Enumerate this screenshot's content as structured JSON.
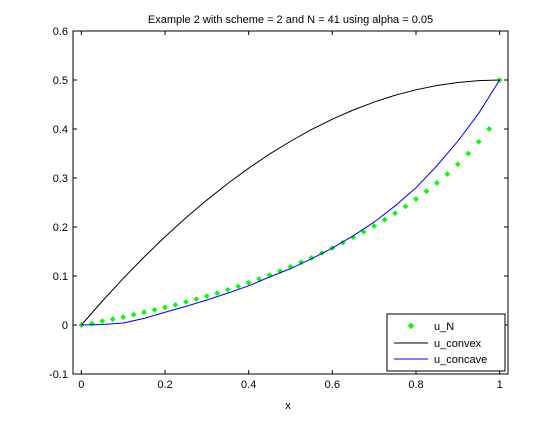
{
  "chart_data": {
    "type": "line",
    "title": "Example 2 with scheme = 2 and N = 41 using alpha = 0.05",
    "xlabel": "x",
    "ylabel": "",
    "xlim": [
      -0.02,
      1.02
    ],
    "ylim": [
      -0.1,
      0.6
    ],
    "xticks": [
      0,
      0.2,
      0.4,
      0.6,
      0.8,
      1
    ],
    "xtick_labels": [
      "0",
      "0.2",
      "0.4",
      "0.6",
      "0.8",
      "1"
    ],
    "yticks": [
      -0.1,
      0,
      0.1,
      0.2,
      0.3,
      0.4,
      0.5,
      0.6
    ],
    "ytick_labels": [
      "-0.1",
      "0",
      "0.1",
      "0.2",
      "0.3",
      "0.4",
      "0.5",
      "0.6"
    ],
    "grid": false,
    "legend_position": "bottom-right",
    "series": [
      {
        "name": "u_N",
        "style": "markers",
        "color": "#00ff00",
        "x": [
          0,
          0.025,
          0.05,
          0.075,
          0.1,
          0.125,
          0.15,
          0.175,
          0.2,
          0.225,
          0.25,
          0.275,
          0.3,
          0.325,
          0.35,
          0.375,
          0.4,
          0.425,
          0.45,
          0.475,
          0.5,
          0.525,
          0.55,
          0.575,
          0.6,
          0.625,
          0.65,
          0.675,
          0.7,
          0.725,
          0.75,
          0.775,
          0.8,
          0.825,
          0.85,
          0.875,
          0.9,
          0.925,
          0.95,
          0.975,
          1
        ],
        "y": [
          0,
          0.003,
          0.008,
          0.012,
          0.016,
          0.021,
          0.026,
          0.031,
          0.036,
          0.041,
          0.047,
          0.053,
          0.059,
          0.065,
          0.072,
          0.079,
          0.086,
          0.094,
          0.102,
          0.11,
          0.119,
          0.128,
          0.137,
          0.147,
          0.157,
          0.168,
          0.179,
          0.19,
          0.202,
          0.215,
          0.228,
          0.242,
          0.257,
          0.273,
          0.29,
          0.308,
          0.328,
          0.35,
          0.374,
          0.4,
          0.5
        ]
      },
      {
        "name": "u_convex",
        "style": "line",
        "color": "#000000",
        "x": [
          0,
          0.05,
          0.1,
          0.15,
          0.2,
          0.25,
          0.3,
          0.35,
          0.4,
          0.45,
          0.5,
          0.55,
          0.6,
          0.65,
          0.7,
          0.75,
          0.8,
          0.85,
          0.9,
          0.95,
          1
        ],
        "y": [
          0,
          0.0487,
          0.095,
          0.1388,
          0.18,
          0.2188,
          0.255,
          0.2888,
          0.32,
          0.3488,
          0.375,
          0.3988,
          0.42,
          0.4388,
          0.455,
          0.4688,
          0.48,
          0.4888,
          0.495,
          0.4988,
          0.5
        ]
      },
      {
        "name": "u_concave",
        "style": "line",
        "color": "#0000ff",
        "x": [
          0,
          0.05,
          0.1,
          0.15,
          0.2,
          0.25,
          0.3,
          0.35,
          0.4,
          0.45,
          0.5,
          0.55,
          0.6,
          0.65,
          0.7,
          0.75,
          0.8,
          0.85,
          0.9,
          0.95,
          1
        ],
        "y": [
          0,
          0.001,
          0.004,
          0.0135,
          0.026,
          0.038,
          0.051,
          0.065,
          0.08,
          0.098,
          0.115,
          0.135,
          0.157,
          0.182,
          0.21,
          0.243,
          0.28,
          0.325,
          0.375,
          0.432,
          0.5
        ]
      }
    ]
  }
}
